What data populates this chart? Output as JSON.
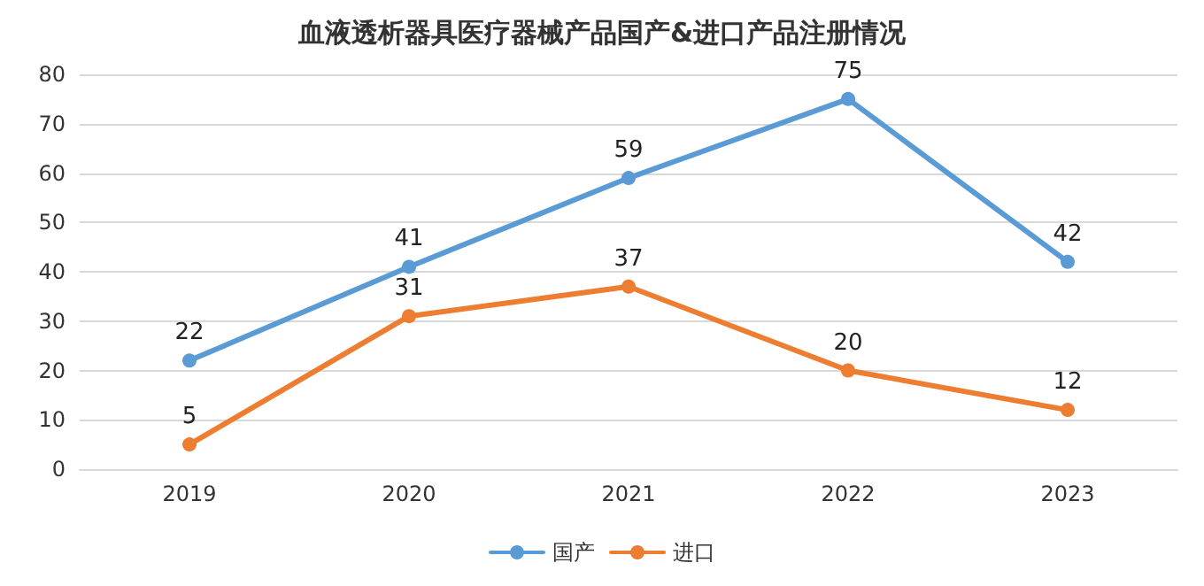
{
  "chart_data": {
    "type": "line",
    "title": "血液透析器具医疗器械产品国产&进口产品注册情况",
    "categories": [
      "2019",
      "2020",
      "2021",
      "2022",
      "2023"
    ],
    "series": [
      {
        "name": "国产",
        "color": "#5b9bd5",
        "values": [
          22,
          41,
          59,
          75,
          42
        ]
      },
      {
        "name": "进口",
        "color": "#ed7d31",
        "values": [
          5,
          31,
          37,
          20,
          12
        ]
      }
    ],
    "ylim": [
      0,
      80
    ],
    "yticks": [
      0,
      10,
      20,
      30,
      40,
      50,
      60,
      70,
      80
    ],
    "grid": "y",
    "legend": "bottom",
    "marker": "circle",
    "line_style": "solid",
    "data_labels": true
  }
}
